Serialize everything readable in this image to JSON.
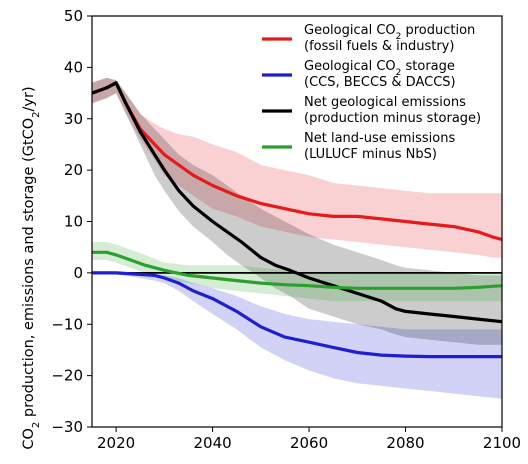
{
  "chart_data": {
    "type": "line",
    "ylabel_main": "CO",
    "ylabel_sub": "2",
    "ylabel_rest": " production, emissions and storage (GtCO",
    "ylabel_unit_sub": "2",
    "ylabel_end": "/yr)",
    "xlim": [
      2015,
      2100
    ],
    "ylim": [
      -30,
      50
    ],
    "xticks": [
      2020,
      2040,
      2060,
      2080,
      2100
    ],
    "yticks": [
      50,
      40,
      30,
      20,
      10,
      0,
      -10,
      -20,
      -30
    ],
    "xtick_labels": [
      "2020",
      "2040",
      "2060",
      "2080",
      "2100"
    ],
    "ytick_labels": [
      "50",
      "40",
      "30",
      "20",
      "10",
      "0",
      "−10",
      "−20",
      "−30"
    ],
    "zero_line": true,
    "legend_placement": "top-right",
    "series": [
      {
        "key": "production",
        "legend_line1_pre": "Geological CO",
        "legend_line1_sub": "2",
        "legend_line1_post": " production",
        "legend_line2": "(fossil fuels & industry)",
        "color": "#e41a1c",
        "x": [
          2015,
          2018,
          2020,
          2022,
          2025,
          2028,
          2030,
          2033,
          2036,
          2040,
          2045,
          2050,
          2055,
          2060,
          2065,
          2070,
          2075,
          2080,
          2085,
          2090,
          2095,
          2098,
          2100
        ],
        "y": [
          35,
          36,
          37,
          33,
          28,
          25,
          23,
          21,
          19,
          17,
          15,
          13.5,
          12.5,
          11.5,
          11,
          11,
          10.5,
          10,
          9.5,
          9,
          8,
          7,
          6.5
        ],
        "upper": [
          37,
          38,
          37.5,
          35,
          31,
          29,
          28,
          27,
          26.5,
          25,
          23.5,
          21,
          20,
          19,
          17.5,
          17,
          16.5,
          16,
          15.5,
          15.5,
          15.5,
          15.5,
          15.5
        ],
        "lower": [
          33,
          34,
          35,
          31,
          26,
          22,
          19,
          17,
          15,
          12.5,
          11,
          9,
          8,
          7,
          6.5,
          6,
          5.5,
          5,
          4.5,
          4,
          3.5,
          3,
          3
        ]
      },
      {
        "key": "storage",
        "legend_line1_pre": "Geological CO",
        "legend_line1_sub": "2",
        "legend_line1_post": " storage",
        "legend_line2": "(CCS, BECCS & DACCS)",
        "color": "#1f1fd2",
        "x": [
          2015,
          2020,
          2025,
          2028,
          2030,
          2033,
          2036,
          2040,
          2045,
          2050,
          2055,
          2060,
          2065,
          2070,
          2075,
          2080,
          2085,
          2090,
          2095,
          2100
        ],
        "y": [
          0,
          0,
          -0.3,
          -0.5,
          -1,
          -2,
          -3.5,
          -5,
          -7.5,
          -10.5,
          -12.5,
          -13.5,
          -14.5,
          -15.5,
          -16,
          -16.2,
          -16.3,
          -16.3,
          -16.3,
          -16.3
        ],
        "upper": [
          0.3,
          0.3,
          0,
          -0.2,
          -0.5,
          -1,
          -2,
          -3,
          -4.5,
          -6.5,
          -8,
          -9,
          -9.5,
          -10,
          -10.5,
          -11,
          -11,
          -11,
          -11,
          -11
        ],
        "lower": [
          -0.3,
          -0.3,
          -1,
          -1.5,
          -2,
          -3.5,
          -5.5,
          -8,
          -11,
          -14.5,
          -17,
          -19,
          -20.5,
          -21.5,
          -22,
          -22.5,
          -23,
          -23.5,
          -24,
          -24.5
        ]
      },
      {
        "key": "net_geological",
        "legend_line1_pre": "Net geological emissions",
        "legend_line1_sub": "",
        "legend_line1_post": "",
        "legend_line2": "(production minus storage)",
        "color": "#000000",
        "x": [
          2015,
          2018,
          2020,
          2022,
          2025,
          2028,
          2030,
          2033,
          2036,
          2040,
          2043,
          2046,
          2050,
          2053,
          2056,
          2060,
          2065,
          2070,
          2075,
          2078,
          2080,
          2085,
          2090,
          2095,
          2100
        ],
        "y": [
          35,
          36,
          37,
          33,
          27.5,
          23,
          20,
          16,
          13,
          10,
          8,
          6,
          3,
          1.5,
          0.5,
          -1,
          -2.5,
          -4,
          -5.5,
          -7,
          -7.5,
          -8,
          -8.5,
          -9,
          -9.5
        ],
        "upper": [
          37,
          38,
          37.5,
          35,
          31,
          28,
          26,
          23,
          21,
          19,
          17,
          15,
          12.5,
          11,
          9.5,
          7.5,
          5.5,
          4,
          2.5,
          1.5,
          1,
          0.5,
          0,
          -0.5,
          -0.5
        ],
        "lower": [
          33,
          34,
          35,
          31,
          25,
          19,
          16,
          12,
          9,
          6,
          3.5,
          1.5,
          -1,
          -3,
          -4.5,
          -7,
          -8.5,
          -10,
          -11,
          -12,
          -12.5,
          -13,
          -13.5,
          -14,
          -14
        ]
      },
      {
        "key": "net_landuse",
        "legend_line1_pre": "Net land-use emissions",
        "legend_line1_sub": "",
        "legend_line1_post": "",
        "legend_line2": "(LULUCF minus NbS)",
        "color": "#2ca02c",
        "x": [
          2015,
          2018,
          2020,
          2023,
          2026,
          2030,
          2035,
          2040,
          2045,
          2050,
          2055,
          2060,
          2065,
          2070,
          2075,
          2080,
          2085,
          2090,
          2095,
          2100
        ],
        "y": [
          4,
          4,
          3.5,
          2.5,
          1.5,
          0.5,
          -0.5,
          -1,
          -1.5,
          -2,
          -2.3,
          -2.5,
          -2.8,
          -3,
          -3,
          -3,
          -3,
          -3,
          -2.8,
          -2.5
        ],
        "upper": [
          6,
          6,
          5.5,
          4.5,
          3.5,
          2,
          1.5,
          1.5,
          1.5,
          1,
          0.5,
          0,
          0,
          0,
          0,
          0,
          0,
          0,
          0,
          0
        ],
        "lower": [
          2.5,
          2.5,
          2,
          1,
          0,
          -1,
          -2,
          -3,
          -3.5,
          -4,
          -4.5,
          -5,
          -5.5,
          -5.5,
          -5.5,
          -5.5,
          -5.5,
          -5.5,
          -5.5,
          -5.5
        ]
      }
    ]
  }
}
